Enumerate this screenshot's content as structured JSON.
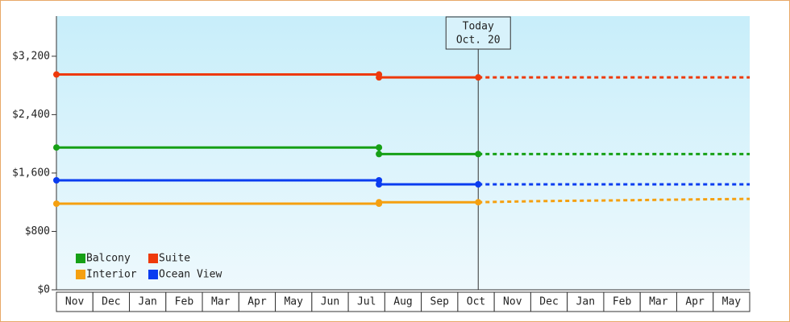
{
  "chart_data": {
    "type": "line",
    "categories": [
      "Nov",
      "Dec",
      "Jan",
      "Feb",
      "Mar",
      "Apr",
      "May",
      "Jun",
      "Jul",
      "Aug",
      "Sep",
      "Oct",
      "Nov",
      "Dec",
      "Jan",
      "Feb",
      "Mar",
      "Apr",
      "May"
    ],
    "xlim": [
      0,
      19
    ],
    "ylim": [
      0,
      3750
    ],
    "yticks": [
      {
        "value": 0,
        "label": "$0"
      },
      {
        "value": 800,
        "label": "$800"
      },
      {
        "value": 1600,
        "label": "$1,600"
      },
      {
        "value": 2400,
        "label": "$2,400"
      },
      {
        "value": 3200,
        "label": "$3,200"
      }
    ],
    "today": {
      "label": [
        "Today",
        "Oct. 20"
      ],
      "x": 11.56
    },
    "series": [
      {
        "name": "Balcony",
        "color": "#16a016",
        "x": [
          0,
          8.84,
          8.84,
          11.56
        ],
        "values": [
          1950,
          1950,
          1860,
          1860
        ],
        "forecast": {
          "x": [
            11.56,
            19
          ],
          "values": [
            1860,
            1860
          ]
        }
      },
      {
        "name": "Suite",
        "color": "#ee3a0c",
        "x": [
          0,
          8.84,
          8.84,
          11.56
        ],
        "values": [
          2950,
          2950,
          2910,
          2910
        ],
        "forecast": {
          "x": [
            11.56,
            19
          ],
          "values": [
            2910,
            2910
          ]
        }
      },
      {
        "name": "Interior",
        "color": "#f5a010",
        "x": [
          0,
          8.84,
          8.84,
          11.56
        ],
        "values": [
          1180,
          1180,
          1200,
          1200
        ],
        "forecast": {
          "x": [
            11.56,
            13.2,
            15.3,
            17.8,
            19
          ],
          "values": [
            1200,
            1215,
            1225,
            1240,
            1245
          ]
        }
      },
      {
        "name": "Ocean View",
        "color": "#0a3cf0",
        "x": [
          0,
          8.84,
          8.84,
          11.56
        ],
        "values": [
          1500,
          1500,
          1445,
          1445
        ],
        "forecast": {
          "x": [
            11.56,
            19
          ],
          "values": [
            1445,
            1445
          ]
        }
      }
    ]
  }
}
